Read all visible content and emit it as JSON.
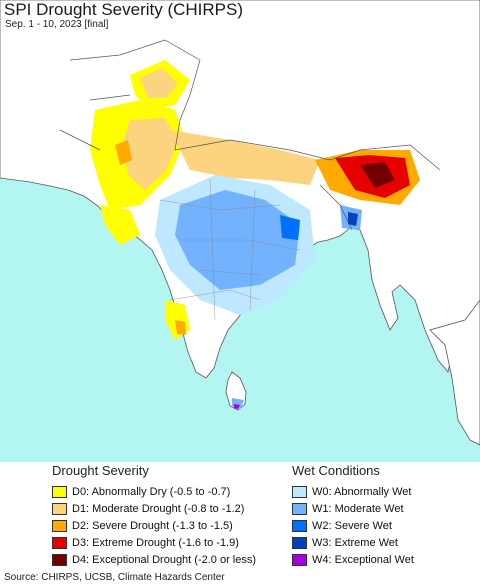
{
  "header": {
    "title": "SPI Drought Severity (CHIRPS)",
    "subtitle": "Sep. 1 - 10, 2023 [final]"
  },
  "map": {
    "ocean_color": "#b3f5f0",
    "land_color": "#ffffff",
    "border_color": "#555555"
  },
  "legend": {
    "drought": {
      "heading": "Drought Severity",
      "items": [
        {
          "label": "D0: Abnormally Dry (-0.5 to -0.7)",
          "color": "#ffff00"
        },
        {
          "label": "D1: Moderate Drought (-0.8 to -1.2)",
          "color": "#fcd37f"
        },
        {
          "label": "D2: Severe Drought (-1.3 to -1.5)",
          "color": "#ffaa00"
        },
        {
          "label": "D3: Extreme Drought (-1.6 to -1.9)",
          "color": "#e60000"
        },
        {
          "label": "D4: Exceptional Drought (-2.0 or less)",
          "color": "#730000"
        }
      ]
    },
    "wet": {
      "heading": "Wet Conditions",
      "items": [
        {
          "label": "W0: Abnormally Wet",
          "color": "#bee8ff"
        },
        {
          "label": "W1: Moderate Wet",
          "color": "#73b2ff"
        },
        {
          "label": "W2: Severe Wet",
          "color": "#0070ff"
        },
        {
          "label": "W3: Extreme Wet",
          "color": "#0044bb"
        },
        {
          "label": "W4: Exceptional Wet",
          "color": "#a800e6"
        }
      ]
    }
  },
  "footer": {
    "source": "Source: CHIRPS, UCSB, Climate Hazards Center"
  }
}
